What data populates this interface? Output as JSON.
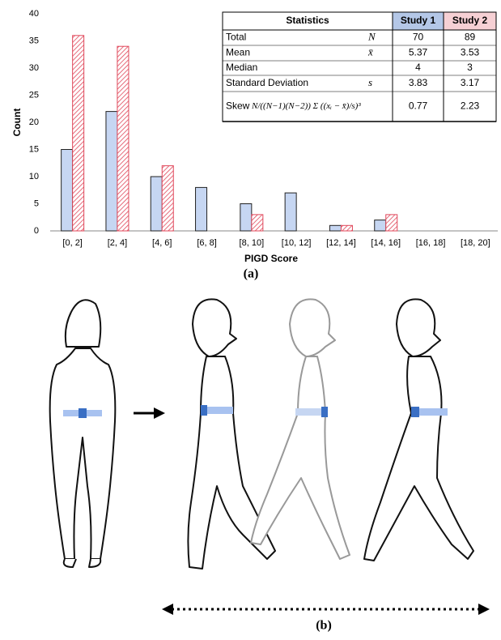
{
  "chart_data": {
    "type": "bar",
    "x_label": "PIGD Score",
    "y_label": "Count",
    "categories": [
      "[0, 2]",
      "[2, 4]",
      "[4, 6]",
      "[6, 8]",
      "[8, 10]",
      "[10, 12]",
      "[12, 14]",
      "[14, 16]",
      "[16, 18]",
      "[18, 20]"
    ],
    "series": [
      {
        "name": "Study 1",
        "color": "#c6d6f2",
        "values": [
          15,
          22,
          10,
          8,
          5,
          7,
          1,
          2,
          0,
          0
        ]
      },
      {
        "name": "Study 2",
        "color": "#e0475a",
        "values": [
          36,
          34,
          12,
          0,
          3,
          0,
          1,
          3,
          0,
          0
        ]
      }
    ],
    "ylim": [
      0,
      40
    ],
    "yticks": [
      0,
      5,
      10,
      15,
      20,
      25,
      30,
      35,
      40
    ],
    "grid": false
  },
  "statistics_table": {
    "title": "Statistics",
    "rows": [
      {
        "label": "Total",
        "symbol": "N",
        "values": [
          70,
          89
        ]
      },
      {
        "label": "Mean",
        "symbol": "x̄",
        "values": [
          5.37,
          3.53
        ]
      },
      {
        "label": "Median",
        "values": [
          4,
          3
        ]
      },
      {
        "label": "Standard Deviation",
        "symbol": "s",
        "values": [
          3.83,
          3.17
        ]
      },
      {
        "label": "Skew",
        "formula": "N/((N−1)(N−2)) Σ ((xᵢ − x̄)/s)³",
        "values": [
          0.77,
          2.23
        ]
      }
    ]
  },
  "captions": [
    "(a)",
    "(b)"
  ]
}
